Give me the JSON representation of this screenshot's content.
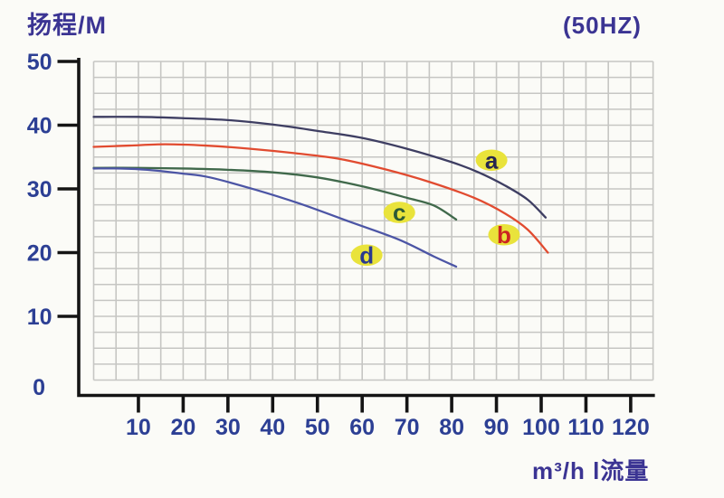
{
  "header": {
    "y_axis_title": "扬程/M",
    "frequency_label": "(50HZ)"
  },
  "footer": {
    "x_axis_label": "m³/h l流量"
  },
  "chart_data": {
    "type": "line",
    "title": "",
    "xlabel": "m³/h l流量",
    "ylabel": "扬程/M",
    "xlim": [
      0,
      125
    ],
    "ylim": [
      0,
      50
    ],
    "x_ticks": [
      10,
      20,
      30,
      40,
      50,
      60,
      70,
      80,
      90,
      100,
      110,
      120
    ],
    "y_ticks": [
      0,
      10,
      20,
      30,
      40,
      50
    ],
    "grid": {
      "x_step": 5,
      "y_step": 2.5
    },
    "legend_position": "none",
    "series": [
      {
        "name": "a",
        "color": "#3e3e62",
        "points": [
          [
            0,
            41.3
          ],
          [
            10,
            41.3
          ],
          [
            20,
            41.1
          ],
          [
            30,
            40.8
          ],
          [
            40,
            40.1
          ],
          [
            50,
            39.1
          ],
          [
            60,
            38.0
          ],
          [
            70,
            36.3
          ],
          [
            80,
            34.2
          ],
          [
            86,
            32.6
          ],
          [
            92,
            30.5
          ],
          [
            97,
            28.3
          ],
          [
            101,
            25.5
          ]
        ],
        "label": {
          "text": "a",
          "x": 88.9,
          "y": 34.5,
          "text_color": "#26264f"
        }
      },
      {
        "name": "b",
        "color": "#e14b30",
        "points": [
          [
            0,
            36.6
          ],
          [
            8,
            36.8
          ],
          [
            16,
            37.0
          ],
          [
            25,
            36.8
          ],
          [
            35,
            36.3
          ],
          [
            45,
            35.6
          ],
          [
            55,
            34.7
          ],
          [
            65,
            33.1
          ],
          [
            75,
            31.1
          ],
          [
            85,
            28.6
          ],
          [
            92,
            26.1
          ],
          [
            97,
            23.6
          ],
          [
            101.5,
            20.0
          ]
        ],
        "label": {
          "text": "b",
          "x": 91.7,
          "y": 22.8,
          "text_color": "#cb2421"
        }
      },
      {
        "name": "c",
        "color": "#40694b",
        "points": [
          [
            0,
            33.3
          ],
          [
            10,
            33.3
          ],
          [
            20,
            33.2
          ],
          [
            30,
            33.0
          ],
          [
            40,
            32.6
          ],
          [
            50,
            31.8
          ],
          [
            60,
            30.4
          ],
          [
            70,
            28.6
          ],
          [
            76,
            27.4
          ],
          [
            81,
            25.2
          ]
        ],
        "label": {
          "text": "c",
          "x": 68.3,
          "y": 26.3,
          "text_color": "#2c5a36"
        }
      },
      {
        "name": "d",
        "color": "#4c55a5",
        "points": [
          [
            0,
            33.2
          ],
          [
            6,
            33.2
          ],
          [
            12,
            33.0
          ],
          [
            20,
            32.4
          ],
          [
            26,
            31.8
          ],
          [
            36,
            29.9
          ],
          [
            46,
            27.7
          ],
          [
            57,
            24.9
          ],
          [
            68,
            22.1
          ],
          [
            76,
            19.4
          ],
          [
            81,
            17.8
          ]
        ],
        "label": {
          "text": "d",
          "x": 61.0,
          "y": 19.6,
          "text_color": "#2a3a90"
        }
      }
    ],
    "label_bg_color": "#e9e33b"
  },
  "colors": {
    "background": "#fbfbf7",
    "grid_line": "#c6c6c3",
    "axis": "#141414",
    "tick_label": "#2c3f94"
  }
}
